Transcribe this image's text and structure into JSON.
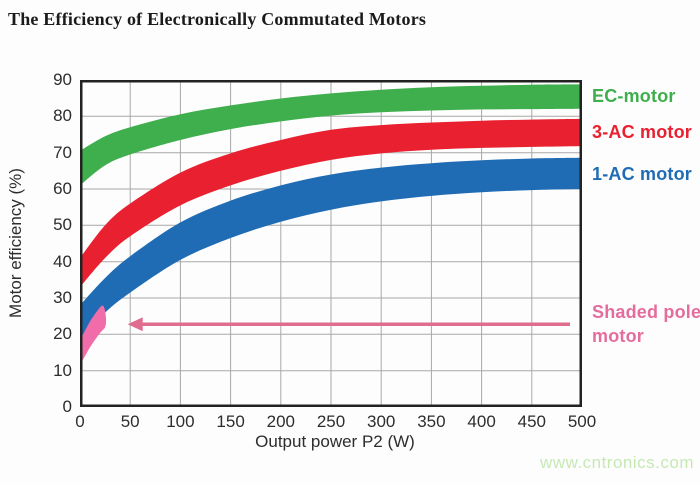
{
  "title": "The Efficiency of Electronically Commutated Motors",
  "watermark": "www.cntronics.com",
  "colors": {
    "grid": "#a8a8a8",
    "frame": "#222222",
    "tick_text": "#2d2d2d",
    "watermark": "#c6e9b4"
  },
  "chart_data": {
    "type": "area",
    "title": "The Efficiency of Electronically Commutated Motors",
    "xlabel": "Output power P2 (W)",
    "ylabel": "Motor efficiency (%)",
    "xlim": [
      0,
      500
    ],
    "ylim": [
      0,
      90
    ],
    "x_ticks": [
      0,
      50,
      100,
      150,
      200,
      250,
      300,
      350,
      400,
      450,
      500
    ],
    "y_ticks": [
      0,
      10,
      20,
      30,
      40,
      50,
      60,
      70,
      80,
      90
    ],
    "grid": true,
    "legend_position": "right",
    "x": [
      0,
      25,
      50,
      100,
      150,
      200,
      250,
      300,
      350,
      400,
      450,
      500
    ],
    "bands": [
      {
        "name": "EC-motor",
        "color": "#3fae4c",
        "lower": [
          61,
          66.5,
          69.5,
          73.5,
          76.5,
          78.6,
          80.2,
          81.1,
          81.6,
          81.9,
          82,
          82.1
        ],
        "upper": [
          70.5,
          74.5,
          77,
          80.6,
          83,
          84.9,
          86.3,
          87.3,
          88,
          88.4,
          88.7,
          88.8
        ]
      },
      {
        "name": "3-AC motor",
        "color": "#e8202f",
        "lower": [
          33,
          41,
          47,
          55.5,
          61,
          65,
          68,
          69.8,
          70.8,
          71.3,
          71.6,
          71.8
        ],
        "upper": [
          41,
          50,
          56,
          64.5,
          69.8,
          73.5,
          76.3,
          77.6,
          78.3,
          78.8,
          79.1,
          79.3
        ]
      },
      {
        "name": "1-AC motor",
        "color": "#1f6cb4",
        "lower": [
          19,
          26,
          31.5,
          40.5,
          46.5,
          51,
          54.3,
          56.6,
          58.1,
          59.1,
          59.7,
          60
        ],
        "upper": [
          28,
          35.5,
          41.5,
          50.8,
          56.8,
          61,
          64,
          65.9,
          67.1,
          67.9,
          68.4,
          68.6
        ]
      }
    ],
    "shaded_pole": {
      "name": "Shaded pole motor",
      "label_lines": [
        "Shaded pole",
        "motor"
      ],
      "color": "#f06daa",
      "label_color": "#e56d9d",
      "outline_w_pct": [
        [
          0,
          11.5
        ],
        [
          8,
          15.5
        ],
        [
          15,
          18.5
        ],
        [
          21,
          20.7
        ],
        [
          25,
          22
        ],
        [
          26,
          24
        ],
        [
          24.5,
          27
        ],
        [
          22,
          27.9
        ],
        [
          17,
          26.4
        ],
        [
          11,
          24
        ],
        [
          5,
          21
        ],
        [
          0,
          18.3
        ]
      ]
    },
    "annotation_arrow": {
      "color": "#e06d8e",
      "from_w": 488,
      "to_w": 47.5,
      "at_pct": 22.8
    }
  }
}
